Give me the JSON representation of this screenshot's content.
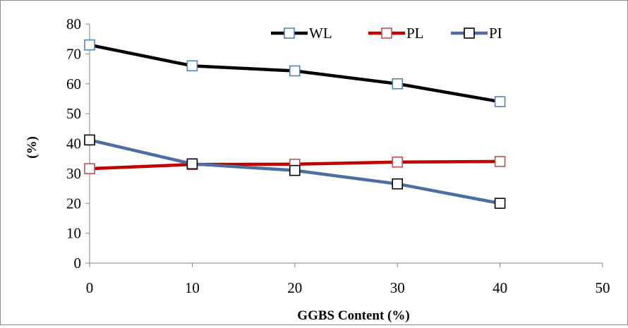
{
  "chart_data": {
    "type": "line",
    "title": "",
    "xlabel": "GGBS Content (%)",
    "ylabel": "(%)",
    "xlim": [
      0,
      50
    ],
    "ylim": [
      0,
      80
    ],
    "xticks": [
      0,
      10,
      20,
      30,
      40,
      50
    ],
    "yticks": [
      0,
      10,
      20,
      30,
      40,
      50,
      60,
      70,
      80
    ],
    "grid": false,
    "legend_position": "top-right",
    "x": [
      0,
      10,
      20,
      30,
      40
    ],
    "series": [
      {
        "name": "WL",
        "values": [
          73,
          66,
          64.3,
          60,
          54
        ],
        "line_color": "#000000",
        "marker_edge": "#4f81bd"
      },
      {
        "name": "PL",
        "values": [
          31.6,
          33,
          33.1,
          33.8,
          34
        ],
        "line_color": "#c00000",
        "marker_edge": "#c0504d"
      },
      {
        "name": "PI",
        "values": [
          41.2,
          33.2,
          31,
          26.5,
          20
        ],
        "line_color": "#4a6fa0",
        "marker_edge": "#000000"
      }
    ]
  }
}
